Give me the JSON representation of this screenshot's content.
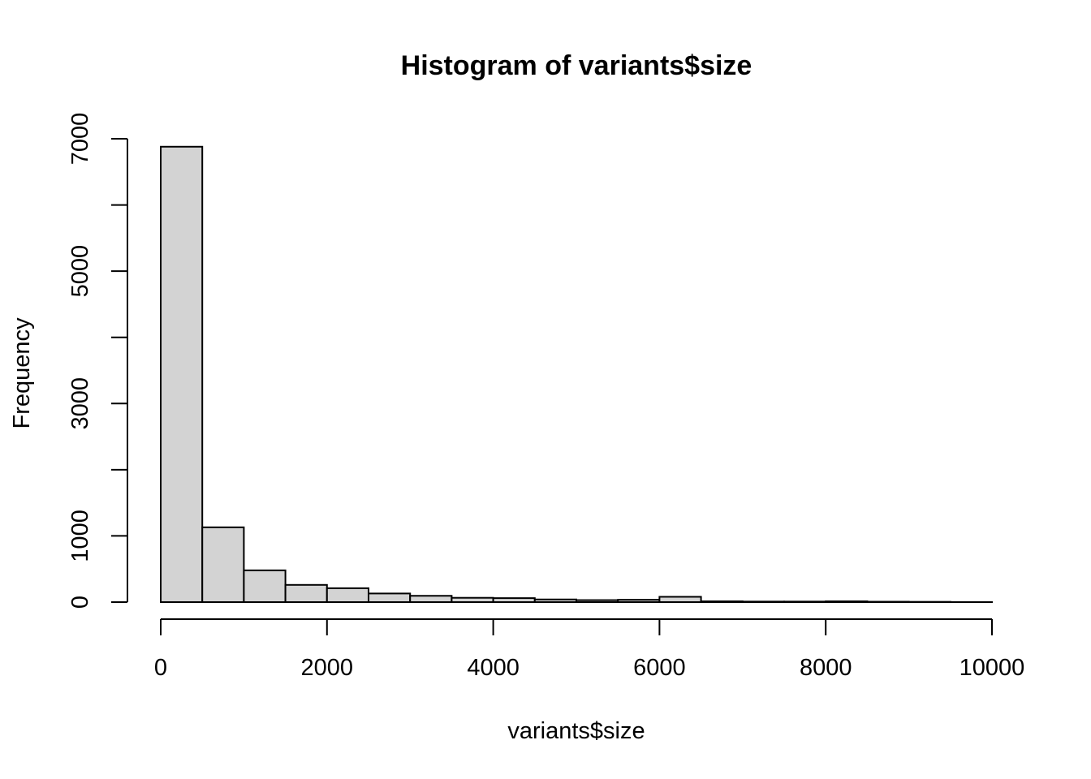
{
  "chart_data": {
    "type": "bar",
    "title": "Histogram of variants$size",
    "xlabel": "variants$size",
    "ylabel": "Frequency",
    "bar_color": "#d3d3d3",
    "xlim": [
      0,
      10000
    ],
    "ylim": [
      0,
      7000
    ],
    "x_ticks": [
      0,
      2000,
      4000,
      6000,
      8000,
      10000
    ],
    "x_tick_labels": [
      "0",
      "2000",
      "4000",
      "6000",
      "8000",
      "10000"
    ],
    "y_ticks": [
      0,
      1000,
      2000,
      3000,
      4000,
      5000,
      6000,
      7000
    ],
    "y_tick_labels": [
      "0",
      "1000",
      "",
      "3000",
      "",
      "5000",
      "",
      "7000"
    ],
    "bins": [
      {
        "start": 0,
        "end": 500,
        "count": 6880
      },
      {
        "start": 500,
        "end": 1000,
        "count": 1130
      },
      {
        "start": 1000,
        "end": 1500,
        "count": 480
      },
      {
        "start": 1500,
        "end": 2000,
        "count": 260
      },
      {
        "start": 2000,
        "end": 2500,
        "count": 210
      },
      {
        "start": 2500,
        "end": 3000,
        "count": 130
      },
      {
        "start": 3000,
        "end": 3500,
        "count": 95
      },
      {
        "start": 3500,
        "end": 4000,
        "count": 65
      },
      {
        "start": 4000,
        "end": 4500,
        "count": 60
      },
      {
        "start": 4500,
        "end": 5000,
        "count": 40
      },
      {
        "start": 5000,
        "end": 5500,
        "count": 30
      },
      {
        "start": 5500,
        "end": 6000,
        "count": 35
      },
      {
        "start": 6000,
        "end": 6500,
        "count": 80
      },
      {
        "start": 6500,
        "end": 7000,
        "count": 12
      },
      {
        "start": 7000,
        "end": 7500,
        "count": 8
      },
      {
        "start": 7500,
        "end": 8000,
        "count": 8
      },
      {
        "start": 8000,
        "end": 8500,
        "count": 12
      },
      {
        "start": 8500,
        "end": 9000,
        "count": 6
      },
      {
        "start": 9000,
        "end": 9500,
        "count": 4
      },
      {
        "start": 9500,
        "end": 10000,
        "count": 1
      }
    ]
  }
}
